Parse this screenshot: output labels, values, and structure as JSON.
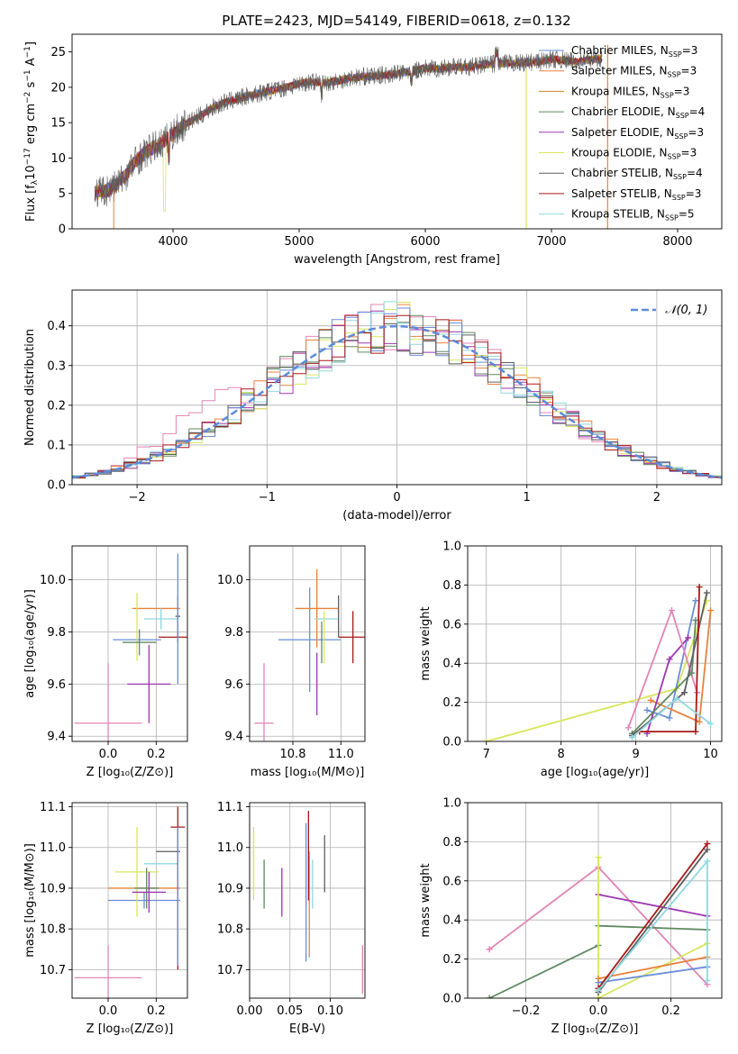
{
  "figure": {
    "title": "PLATE=2423, MJD=54149, FIBERID=0618, z=0.132"
  },
  "colors": {
    "Chabrier MILES": "#6a8ed8",
    "Salpeter MILES": "#e8823c",
    "Kroupa MILES": "#c58a2a",
    "Chabrier ELODIE": "#5f8a62",
    "Salpeter ELODIE": "#9b38b0",
    "Kroupa ELODIE": "#d8e65a",
    "Chabrier STELIB": "#5e5e5e",
    "Salpeter STELIB": "#a8181a",
    "Kroupa STELIB": "#8fd8df",
    "pink_model": "#e384b5"
  },
  "chart_data": [
    {
      "id": "spectrum",
      "type": "line",
      "xlabel": "wavelength [Angstrom, rest frame]",
      "ylabel": "Flux [f",
      "ylabel_sub": "λ",
      "ylabel_rest": "10",
      "ylabel_sup": "−17",
      "ylabel_tail": " erg cm",
      "ylabel_sup2": "−2",
      "ylabel_tail2": " s",
      "ylabel_sup3": "−1",
      "ylabel_tail3": " A",
      "ylabel_sup4": "−1",
      "ylabel_close": "]",
      "xlim": [
        3200,
        8350
      ],
      "ylim": [
        0,
        27.5
      ],
      "xticks": [
        "4000",
        "5000",
        "6000",
        "7000",
        "8000"
      ],
      "xtick_values": [
        4000,
        5000,
        6000,
        7000,
        8000
      ],
      "yticks": [
        "0",
        "5",
        "10",
        "15",
        "20",
        "25"
      ],
      "ytick_values": [
        0,
        5,
        10,
        15,
        20,
        25
      ],
      "envelope": {
        "x": [
          3380,
          3500,
          3600,
          3700,
          3800,
          3900,
          4000,
          4100,
          4200,
          4300,
          4400,
          4500,
          4600,
          4700,
          4800,
          4900,
          5000,
          5100,
          5200,
          5300,
          5400,
          5500,
          5600,
          5700,
          5800,
          5900,
          6000,
          6100,
          6200,
          6300,
          6400,
          6500,
          6600,
          6700,
          6800,
          6900,
          7000,
          7100,
          7200,
          7300,
          7400
        ],
        "y": [
          5.0,
          5.6,
          7.0,
          9.5,
          11.0,
          12.0,
          13.5,
          14.8,
          15.8,
          17.0,
          17.8,
          18.3,
          18.8,
          19.2,
          19.6,
          20.0,
          20.5,
          20.8,
          20.6,
          20.9,
          21.3,
          21.5,
          21.6,
          21.8,
          22.0,
          22.3,
          22.7,
          22.6,
          22.9,
          22.8,
          23.0,
          23.3,
          23.4,
          23.4,
          23.5,
          23.6,
          24.0,
          23.8,
          23.6,
          23.9,
          24.1
        ]
      },
      "legend": [
        {
          "label": "Chabrier MILES, N",
          "sub": "SSP",
          "tail": "=3"
        },
        {
          "label": "Salpeter MILES, N",
          "sub": "SSP",
          "tail": "=3"
        },
        {
          "label": "Kroupa MILES, N",
          "sub": "SSP",
          "tail": "=3"
        },
        {
          "label": "Chabrier ELODIE, N",
          "sub": "SSP",
          "tail": "=4"
        },
        {
          "label": "Salpeter ELODIE, N",
          "sub": "SSP",
          "tail": "=3"
        },
        {
          "label": "Kroupa ELODIE, N",
          "sub": "SSP",
          "tail": "=3"
        },
        {
          "label": "Chabrier STELIB, N",
          "sub": "SSP",
          "tail": "=4"
        },
        {
          "label": "Salpeter STELIB, N",
          "sub": "SSP",
          "tail": "=3"
        },
        {
          "label": "Kroupa STELIB, N",
          "sub": "SSP",
          "tail": "=5"
        }
      ],
      "legend_loc": "top-right",
      "grid": false
    },
    {
      "id": "residuals",
      "type": "area",
      "xlabel": "(data-model)/error",
      "ylabel": "Normed distribution",
      "xlim": [
        -2.5,
        2.5
      ],
      "ylim": [
        0,
        0.49
      ],
      "xticks": [
        "−2",
        "−1",
        "0",
        "1",
        "2"
      ],
      "xtick_values": [
        -2,
        -1,
        0,
        1,
        2
      ],
      "yticks": [
        "0.0",
        "0.1",
        "0.2",
        "0.3",
        "0.4"
      ],
      "ytick_values": [
        0.0,
        0.1,
        0.2,
        0.3,
        0.4
      ],
      "legend": [
        "𝒩(0, 1)"
      ],
      "legend_loc": "top-right",
      "grid": true,
      "gaussian": {
        "mu": 0,
        "sigma": 1
      }
    },
    {
      "id": "age_vs_Z",
      "type": "scatter",
      "xlabel": "Z [log₁₀(Z/Z⊙)]",
      "ylabel": "age  [log₁₀(age/yr)]",
      "xlim": [
        -0.15,
        0.33
      ],
      "ylim": [
        9.38,
        10.13
      ],
      "xticks": [
        "0.0",
        "0.2"
      ],
      "xtick_values": [
        0.0,
        0.2
      ],
      "yticks": [
        "9.4",
        "9.6",
        "9.8",
        "10.0"
      ],
      "ytick_values": [
        9.4,
        9.6,
        9.8,
        10.0
      ],
      "grid": true,
      "points": [
        {
          "model": "pink_model",
          "x": 0.0,
          "y": 9.45,
          "xerr": 0.14,
          "yerr": 0.23
        },
        {
          "model": "Chabrier MILES",
          "x": 0.12,
          "y": 9.77,
          "xerr": 0.1,
          "yerr": 0.0
        },
        {
          "model": "Salpeter MILES",
          "x": 0.2,
          "y": 9.89,
          "xerr": 0.1,
          "yerr": 0.0
        },
        {
          "model": "Kroupa ELODIE",
          "x": 0.12,
          "y": 9.82,
          "xerr": 0.0,
          "yerr": 0.13
        },
        {
          "model": "Chabrier ELODIE",
          "x": 0.13,
          "y": 9.76,
          "xerr": 0.07,
          "yerr": 0.05
        },
        {
          "model": "Salpeter ELODIE",
          "x": 0.17,
          "y": 9.6,
          "xerr": 0.09,
          "yerr": 0.15
        },
        {
          "model": "Kroupa STELIB",
          "x": 0.22,
          "y": 9.85,
          "xerr": 0.07,
          "yerr": 0.04
        },
        {
          "model": "Chabrier STELIB",
          "x": 0.29,
          "y": 9.86,
          "xerr": 0.01,
          "yerr": 0.08
        },
        {
          "model": "Salpeter STELIB",
          "x": 0.29,
          "y": 9.78,
          "xerr": 0.08,
          "yerr": 0.02
        },
        {
          "model": "Chabrier MILES",
          "x": 0.29,
          "y": 9.85,
          "xerr": 0.0,
          "yerr": 0.25
        }
      ]
    },
    {
      "id": "age_vs_mass",
      "type": "scatter",
      "xlabel": "mass [log₁₀(M/M⊙)]",
      "ylabel": "",
      "xlim": [
        10.62,
        11.1
      ],
      "ylim": [
        9.38,
        10.13
      ],
      "xticks": [
        "10.8",
        "11.0"
      ],
      "xtick_values": [
        10.8,
        11.0
      ],
      "yticks": [
        "9.4",
        "9.6",
        "9.8",
        "10.0"
      ],
      "ytick_values": [
        9.4,
        9.6,
        9.8,
        10.0
      ],
      "grid": true,
      "points": [
        {
          "model": "pink_model",
          "x": 10.68,
          "y": 9.45,
          "xerr": 0.04,
          "yerr": 0.23
        },
        {
          "model": "Chabrier MILES",
          "x": 10.87,
          "y": 9.77,
          "xerr": 0.13,
          "yerr": 0.2
        },
        {
          "model": "Salpeter MILES",
          "x": 10.9,
          "y": 9.89,
          "xerr": 0.09,
          "yerr": 0.15
        },
        {
          "model": "Salpeter ELODIE",
          "x": 10.9,
          "y": 9.6,
          "xerr": 0.0,
          "yerr": 0.12
        },
        {
          "model": "Kroupa STELIB",
          "x": 10.94,
          "y": 9.85,
          "xerr": 0.05,
          "yerr": 0.0
        },
        {
          "model": "Chabrier STELIB",
          "x": 10.99,
          "y": 9.86,
          "xerr": 0.0,
          "yerr": 0.08
        },
        {
          "model": "Salpeter STELIB",
          "x": 11.05,
          "y": 9.78,
          "xerr": 0.06,
          "yerr": 0.1
        },
        {
          "model": "Kroupa ELODIE",
          "x": 10.93,
          "y": 9.78,
          "xerr": 0.0,
          "yerr": 0.1
        },
        {
          "model": "Chabrier ELODIE",
          "x": 10.92,
          "y": 9.76,
          "xerr": 0.0,
          "yerr": 0.08
        }
      ]
    },
    {
      "id": "mass_weight_vs_age",
      "type": "line",
      "xlabel": "age  [log₁₀(age/yr)]",
      "ylabel": "mass weight",
      "xlim": [
        6.75,
        10.15
      ],
      "ylim": [
        0,
        1.0
      ],
      "xticks": [
        "7",
        "8",
        "9",
        "10"
      ],
      "xtick_values": [
        7,
        8,
        9,
        10
      ],
      "yticks": [
        "0.0",
        "0.2",
        "0.4",
        "0.6",
        "0.8",
        "1.0"
      ],
      "ytick_values": [
        0.0,
        0.2,
        0.4,
        0.6,
        0.8,
        1.0
      ],
      "grid": true,
      "series": [
        {
          "model": "Kroupa ELODIE",
          "x": [
            7.0,
            9.55,
            9.95
          ],
          "y": [
            0.0,
            0.27,
            0.72
          ]
        },
        {
          "model": "Chabrier MILES",
          "x": [
            9.15,
            9.45,
            9.8
          ],
          "y": [
            0.16,
            0.12,
            0.72
          ]
        },
        {
          "model": "Salpeter MILES",
          "x": [
            9.2,
            9.85,
            10.0
          ],
          "y": [
            0.21,
            0.1,
            0.67
          ]
        },
        {
          "model": "Salpeter ELODIE",
          "x": [
            9.15,
            9.45,
            9.7
          ],
          "y": [
            0.04,
            0.42,
            0.53
          ]
        },
        {
          "model": "pink_model",
          "x": [
            8.9,
            9.48,
            9.82
          ],
          "y": [
            0.07,
            0.67,
            0.25
          ]
        },
        {
          "model": "Chabrier ELODIE",
          "x": [
            8.95,
            9.75,
            9.8
          ],
          "y": [
            0.04,
            0.35,
            0.62
          ]
        },
        {
          "model": "Chabrier STELIB",
          "x": [
            8.95,
            9.65,
            9.95
          ],
          "y": [
            0.03,
            0.25,
            0.76
          ]
        },
        {
          "model": "Salpeter STELIB",
          "x": [
            9.05,
            9.8,
            9.85
          ],
          "y": [
            0.05,
            0.05,
            0.79
          ]
        },
        {
          "model": "Kroupa STELIB",
          "x": [
            8.95,
            9.55,
            10.0
          ],
          "y": [
            0.02,
            0.22,
            0.09
          ]
        }
      ]
    },
    {
      "id": "mass_vs_Z",
      "type": "scatter",
      "xlabel": "Z [log₁₀(Z/Z⊙)]",
      "ylabel": "mass [log₁₀(M/M⊙)]",
      "xlim": [
        -0.15,
        0.33
      ],
      "ylim": [
        10.63,
        11.11
      ],
      "xticks": [
        "0.0",
        "0.2"
      ],
      "xtick_values": [
        0.0,
        0.2
      ],
      "yticks": [
        "10.7",
        "10.8",
        "10.9",
        "11.0",
        "11.1"
      ],
      "ytick_values": [
        10.7,
        10.8,
        10.9,
        11.0,
        11.1
      ],
      "grid": true,
      "points": [
        {
          "model": "pink_model",
          "x": 0.0,
          "y": 10.68,
          "xerr": 0.14,
          "yerr": 0.08
        },
        {
          "model": "Chabrier MILES",
          "x": 0.15,
          "y": 10.87,
          "xerr": 0.15,
          "yerr": 0.02
        },
        {
          "model": "Salpeter MILES",
          "x": 0.15,
          "y": 10.9,
          "xerr": 0.15,
          "yerr": 0.0
        },
        {
          "model": "Kroupa ELODIE",
          "x": 0.12,
          "y": 10.94,
          "xerr": 0.09,
          "yerr": 0.11
        },
        {
          "model": "Chabrier ELODIE",
          "x": 0.16,
          "y": 10.9,
          "xerr": 0.05,
          "yerr": 0.05
        },
        {
          "model": "Salpeter ELODIE",
          "x": 0.17,
          "y": 10.89,
          "xerr": 0.07,
          "yerr": 0.05
        },
        {
          "model": "Kroupa STELIB",
          "x": 0.22,
          "y": 10.96,
          "xerr": 0.07,
          "yerr": 0.0
        },
        {
          "model": "Chabrier STELIB",
          "x": 0.25,
          "y": 10.99,
          "xerr": 0.05,
          "yerr": 0.0
        },
        {
          "model": "Salpeter STELIB",
          "x": 0.29,
          "y": 11.05,
          "xerr": 0.03,
          "yerr": 0.0
        },
        {
          "model": "Salpeter STELIB",
          "x": 0.29,
          "y": 10.9,
          "xerr": 0.0,
          "yerr": 0.2
        },
        {
          "model": "Chabrier MILES",
          "x": 0.29,
          "y": 10.88,
          "xerr": 0.0,
          "yerr": 0.17
        }
      ]
    },
    {
      "id": "mass_vs_ebv",
      "type": "scatter",
      "xlabel": "E(B-V)",
      "ylabel": "",
      "xlim": [
        0.0,
        0.143
      ],
      "ylim": [
        10.63,
        11.11
      ],
      "xticks": [
        "0.00",
        "0.05",
        "0.10"
      ],
      "xtick_values": [
        0.0,
        0.05,
        0.1
      ],
      "yticks": [
        "10.7",
        "10.8",
        "10.9",
        "11.0",
        "11.1"
      ],
      "ytick_values": [
        10.7,
        10.8,
        10.9,
        11.0,
        11.1
      ],
      "grid": true,
      "points": [
        {
          "model": "Kroupa ELODIE",
          "x": 0.005,
          "y": 10.96,
          "xerr": 0.0,
          "yerr": 0.09
        },
        {
          "model": "Chabrier ELODIE",
          "x": 0.018,
          "y": 10.91,
          "xerr": 0.0,
          "yerr": 0.06
        },
        {
          "model": "Salpeter ELODIE",
          "x": 0.04,
          "y": 10.89,
          "xerr": 0.0,
          "yerr": 0.06
        },
        {
          "model": "Chabrier MILES",
          "x": 0.07,
          "y": 10.89,
          "xerr": 0.0,
          "yerr": 0.17
        },
        {
          "model": "Salpeter MILES",
          "x": 0.074,
          "y": 10.86,
          "xerr": 0.0,
          "yerr": 0.13
        },
        {
          "model": "Salpeter STELIB",
          "x": 0.073,
          "y": 10.98,
          "xerr": 0.0,
          "yerr": 0.11
        },
        {
          "model": "Kroupa STELIB",
          "x": 0.078,
          "y": 10.91,
          "xerr": 0.0,
          "yerr": 0.06
        },
        {
          "model": "Chabrier STELIB",
          "x": 0.093,
          "y": 10.96,
          "xerr": 0.0,
          "yerr": 0.07
        },
        {
          "model": "pink_model",
          "x": 0.14,
          "y": 10.7,
          "xerr": 0.0,
          "yerr": 0.06
        }
      ]
    },
    {
      "id": "mass_weight_vs_Z",
      "type": "line",
      "xlabel": "Z [log₁₀(Z/Z⊙)]",
      "ylabel": "mass weight",
      "xlim": [
        -0.36,
        0.34
      ],
      "ylim": [
        0,
        1.0
      ],
      "xticks": [
        "−0.2",
        "0.0",
        "0.2"
      ],
      "xtick_values": [
        -0.2,
        0.0,
        0.2
      ],
      "yticks": [
        "0.0",
        "0.2",
        "0.4",
        "0.6",
        "0.8",
        "1.0"
      ],
      "ytick_values": [
        0.0,
        0.2,
        0.4,
        0.6,
        0.8,
        1.0
      ],
      "grid": true,
      "series": [
        {
          "model": "pink_model",
          "x": [
            -0.3,
            0.0,
            0.3
          ],
          "y": [
            0.25,
            0.67,
            0.07
          ]
        },
        {
          "model": "Chabrier ELODIE",
          "x": [
            -0.3,
            0.0
          ],
          "y": [
            0.0,
            0.27
          ]
        },
        {
          "model": "Chabrier ELODIE",
          "x": [
            0.0,
            0.3
          ],
          "y": [
            0.37,
            0.35
          ]
        },
        {
          "model": "Salpeter ELODIE",
          "x": [
            0.0,
            0.3
          ],
          "y": [
            0.53,
            0.42
          ]
        },
        {
          "model": "Kroupa ELODIE",
          "x": [
            0.0,
            0.0,
            0.3
          ],
          "y": [
            0.72,
            0.0,
            0.28
          ]
        },
        {
          "model": "Chabrier MILES",
          "x": [
            0.0,
            0.3
          ],
          "y": [
            0.08,
            0.16
          ]
        },
        {
          "model": "Salpeter MILES",
          "x": [
            0.0,
            0.3
          ],
          "y": [
            0.1,
            0.21
          ]
        },
        {
          "model": "Chabrier STELIB",
          "x": [
            0.0,
            0.3
          ],
          "y": [
            0.03,
            0.76
          ]
        },
        {
          "model": "Salpeter STELIB",
          "x": [
            0.0,
            0.3
          ],
          "y": [
            0.05,
            0.79
          ]
        },
        {
          "model": "Kroupa STELIB",
          "x": [
            0.0,
            0.3,
            0.3
          ],
          "y": [
            0.04,
            0.7,
            0.09
          ]
        }
      ]
    }
  ]
}
